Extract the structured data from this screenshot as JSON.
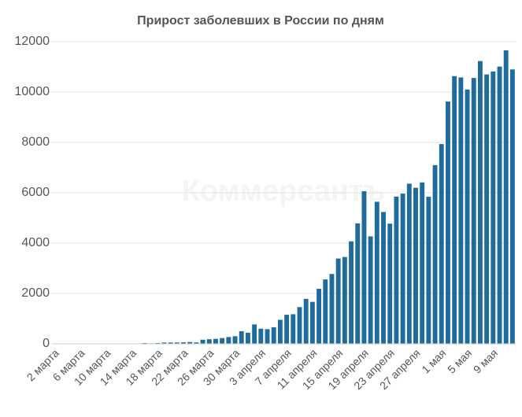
{
  "chart_data": {
    "type": "bar",
    "title": "Прирост заболевших в России по дням",
    "watermark": "Коммерсантъ",
    "categories": [
      "2 марта",
      null,
      null,
      null,
      "6 марта",
      null,
      null,
      null,
      "10 марта",
      null,
      null,
      null,
      "14 марта",
      null,
      null,
      null,
      "18 марта",
      null,
      null,
      null,
      "22 марта",
      null,
      null,
      null,
      "26 марта",
      null,
      null,
      null,
      "30 марта",
      null,
      null,
      null,
      "3 апреля",
      null,
      null,
      null,
      "7 апреля",
      null,
      null,
      null,
      "11 апреля",
      null,
      null,
      null,
      "15 апреля",
      null,
      null,
      null,
      "19 апреля",
      null,
      null,
      null,
      "23 апреля",
      null,
      null,
      null,
      "27 апреля",
      null,
      null,
      null,
      "1 мая",
      null,
      null,
      null,
      "5 мая",
      null,
      null,
      null,
      "9 мая",
      null,
      null,
      null
    ],
    "values": [
      1,
      0,
      0,
      1,
      6,
      0,
      3,
      0,
      3,
      8,
      6,
      14,
      14,
      4,
      30,
      21,
      33,
      52,
      54,
      53,
      61,
      71,
      57,
      163,
      182,
      196,
      228,
      270,
      302,
      501,
      440,
      771,
      601,
      582,
      658,
      954,
      1154,
      1175,
      1459,
      1786,
      1667,
      2186,
      2558,
      2774,
      3388,
      3448,
      4070,
      4785,
      6060,
      4268,
      5642,
      5236,
      4774,
      5849,
      5966,
      6361,
      6198,
      6411,
      5841,
      7099,
      7933,
      9623,
      10633,
      10581,
      10102,
      10559,
      11231,
      10699,
      10817,
      11012,
      11656,
      10899
    ],
    "color": "#1f6b9c",
    "ylim": [
      0,
      12000
    ],
    "yticks": [
      0,
      2000,
      4000,
      6000,
      8000,
      10000,
      12000
    ],
    "grid": true
  }
}
